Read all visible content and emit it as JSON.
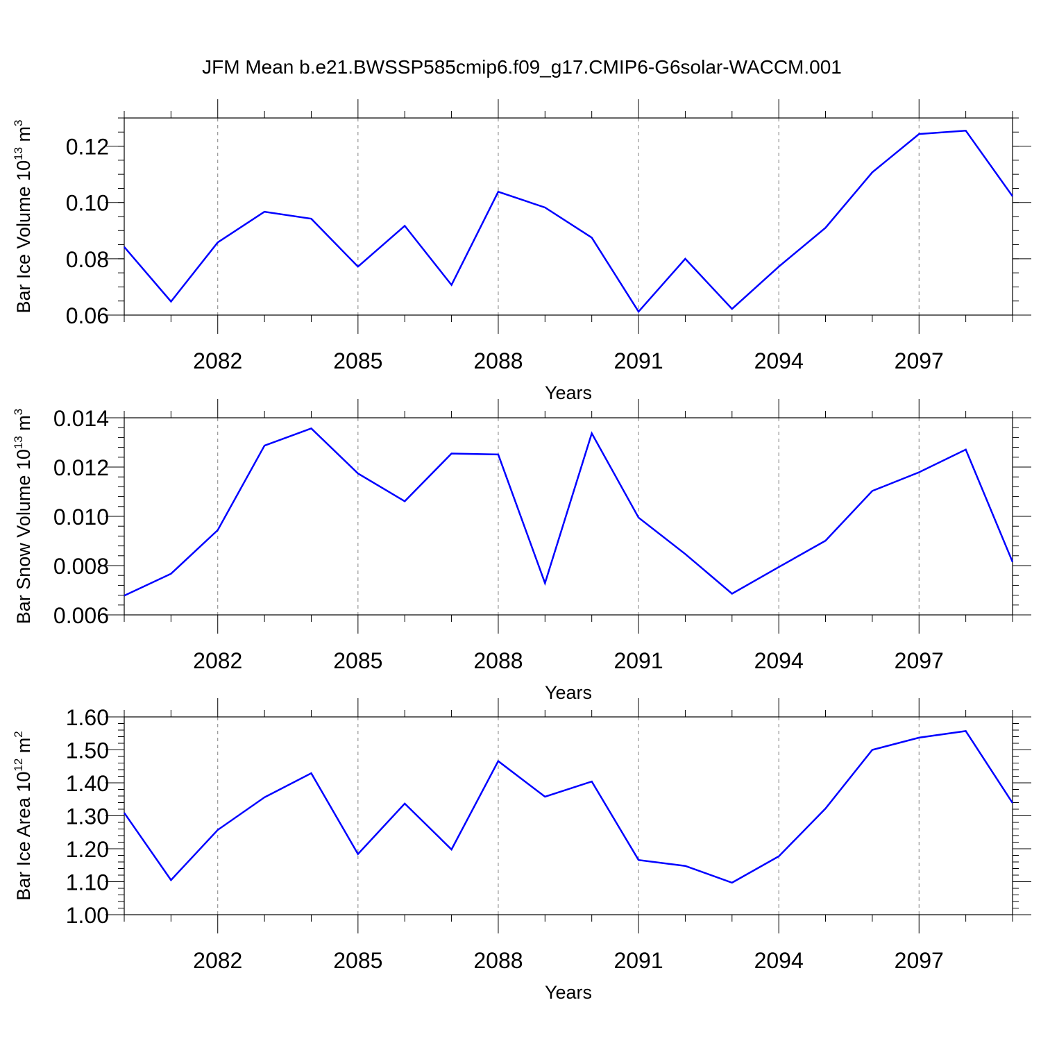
{
  "title": "JFM Mean b.e21.BWSSP585cmip6.f09_g17.CMIP6-G6solar-WACCM.001",
  "colors": {
    "line": "#0000ff",
    "axis": "#000000",
    "grid": "#808080"
  },
  "panels": [
    {
      "ylabel": {
        "prefix": "Bar Ice Volume 10",
        "exp": "13",
        "unit": " m",
        "unit_exp": "3"
      },
      "xlabel": "Years"
    },
    {
      "ylabel": {
        "prefix": "Bar Snow Volume 10",
        "exp": "13",
        "unit": " m",
        "unit_exp": "3"
      },
      "xlabel": "Years"
    },
    {
      "ylabel": {
        "prefix": "Bar Ice Area 10",
        "exp": "12",
        "unit": " m",
        "unit_exp": "2"
      },
      "xlabel": "Years"
    }
  ],
  "chart_data": [
    {
      "type": "line",
      "ylabel": "Bar Ice Volume 10^13 m^3",
      "xlabel": "Years",
      "xlim": [
        2080,
        2099
      ],
      "ylim": [
        0.06,
        0.13
      ],
      "xticks": [
        2082,
        2085,
        2088,
        2091,
        2094,
        2097
      ],
      "xtick_labels": [
        "2082",
        "2085",
        "2088",
        "2091",
        "2094",
        "2097"
      ],
      "yticks": [
        0.06,
        0.08,
        0.1,
        0.12
      ],
      "ytick_labels": [
        "0.06",
        "0.08",
        "0.10",
        "0.12"
      ],
      "y_minor_step": 0.005,
      "grid": "vertical dashed at major x ticks",
      "x": [
        2080,
        2081,
        2082,
        2083,
        2084,
        2085,
        2086,
        2087,
        2088,
        2089,
        2090,
        2091,
        2092,
        2093,
        2094,
        2095,
        2096,
        2097,
        2098,
        2099
      ],
      "series": [
        {
          "values": [
            0.0842,
            0.0648,
            0.0858,
            0.0967,
            0.0942,
            0.0772,
            0.0917,
            0.0707,
            0.1038,
            0.0982,
            0.0875,
            0.0612,
            0.08,
            0.0622,
            0.0772,
            0.091,
            0.1107,
            0.1243,
            0.1255,
            0.1022
          ]
        }
      ]
    },
    {
      "type": "line",
      "ylabel": "Bar Snow Volume 10^13 m^3",
      "xlabel": "Years",
      "xlim": [
        2080,
        2099
      ],
      "ylim": [
        0.006,
        0.014
      ],
      "xticks": [
        2082,
        2085,
        2088,
        2091,
        2094,
        2097
      ],
      "xtick_labels": [
        "2082",
        "2085",
        "2088",
        "2091",
        "2094",
        "2097"
      ],
      "yticks": [
        0.006,
        0.008,
        0.01,
        0.012,
        0.014
      ],
      "ytick_labels": [
        "0.006",
        "0.008",
        "0.010",
        "0.012",
        "0.014"
      ],
      "y_minor_step": 0.0004,
      "grid": "vertical dashed at major x ticks",
      "x": [
        2080,
        2081,
        2082,
        2083,
        2084,
        2085,
        2086,
        2087,
        2088,
        2089,
        2090,
        2091,
        2092,
        2093,
        2094,
        2095,
        2096,
        2097,
        2098,
        2099
      ],
      "series": [
        {
          "values": [
            0.00678,
            0.00767,
            0.00944,
            0.01287,
            0.01357,
            0.01174,
            0.01061,
            0.01255,
            0.01251,
            0.00729,
            0.01337,
            0.00995,
            0.00847,
            0.00686,
            0.00794,
            0.00901,
            0.01103,
            0.01179,
            0.01271,
            0.00815
          ]
        }
      ]
    },
    {
      "type": "line",
      "ylabel": "Bar Ice Area 10^12 m^2",
      "xlabel": "Years",
      "xlim": [
        2080,
        2099
      ],
      "ylim": [
        1.0,
        1.6
      ],
      "xticks": [
        2082,
        2085,
        2088,
        2091,
        2094,
        2097
      ],
      "xtick_labels": [
        "2082",
        "2085",
        "2088",
        "2091",
        "2094",
        "2097"
      ],
      "yticks": [
        1.0,
        1.1,
        1.2,
        1.3,
        1.4,
        1.5,
        1.6
      ],
      "ytick_labels": [
        "1.00",
        "1.10",
        "1.20",
        "1.30",
        "1.40",
        "1.50",
        "1.60"
      ],
      "y_minor_step": 0.02,
      "grid": "vertical dashed at major x ticks",
      "x": [
        2080,
        2081,
        2082,
        2083,
        2084,
        2085,
        2086,
        2087,
        2088,
        2089,
        2090,
        2091,
        2092,
        2093,
        2094,
        2095,
        2096,
        2097,
        2098,
        2099
      ],
      "series": [
        {
          "values": [
            1.309,
            1.105,
            1.257,
            1.356,
            1.429,
            1.184,
            1.337,
            1.198,
            1.466,
            1.358,
            1.404,
            1.166,
            1.148,
            1.097,
            1.177,
            1.322,
            1.5,
            1.537,
            1.557,
            1.339
          ]
        }
      ]
    }
  ]
}
